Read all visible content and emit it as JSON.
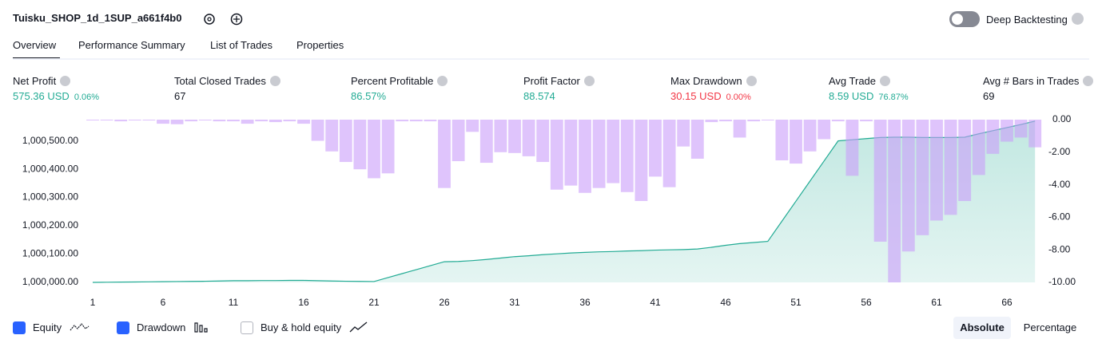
{
  "header": {
    "title": "Tuisku_SHOP_1d_1SUP_a661f4b0",
    "toggle_label": "Deep Backtesting"
  },
  "tabs": [
    "Overview",
    "Performance Summary",
    "List of Trades",
    "Properties"
  ],
  "stats": [
    {
      "label": "Net Profit",
      "value": "575.36 USD",
      "change": "0.06%"
    },
    {
      "label": "Total Closed Trades",
      "value": "67"
    },
    {
      "label": "Percent Profitable",
      "value": "86.57%"
    },
    {
      "label": "Profit Factor",
      "value": "88.574"
    },
    {
      "label": "Max Drawdown",
      "value": "30.15 USD",
      "change": "0.00%"
    },
    {
      "label": "Avg Trade",
      "value": "8.59 USD",
      "change": "76.87%"
    },
    {
      "label": "Avg # Bars in Trades",
      "value": "69"
    }
  ],
  "chart_data": {
    "type": "line",
    "x": [
      1,
      2,
      3,
      4,
      5,
      6,
      7,
      8,
      9,
      10,
      11,
      12,
      13,
      14,
      15,
      16,
      17,
      18,
      19,
      20,
      21,
      22,
      23,
      24,
      25,
      26,
      27,
      28,
      29,
      30,
      31,
      32,
      33,
      34,
      35,
      36,
      37,
      38,
      39,
      40,
      41,
      42,
      43,
      44,
      45,
      46,
      47,
      48,
      49,
      50,
      51,
      52,
      53,
      54,
      55,
      56,
      57,
      58,
      59,
      60,
      61,
      62,
      63,
      64,
      65,
      66,
      67,
      68
    ],
    "xlim": [
      0.5,
      68.5
    ],
    "xticks": [
      1,
      6,
      11,
      16,
      21,
      26,
      31,
      36,
      41,
      46,
      51,
      56,
      61,
      66
    ],
    "ylim": [
      1000000,
      1000575
    ],
    "yticks": [
      {
        "value": 1000000,
        "label": "1,000,000.00"
      },
      {
        "value": 1000100,
        "label": "1,000,100.00"
      },
      {
        "value": 1000200,
        "label": "1,000,200.00"
      },
      {
        "value": 1000300,
        "label": "1,000,300.00"
      },
      {
        "value": 1000400,
        "label": "1,000,400.00"
      },
      {
        "value": 1000500,
        "label": "1,000,500.00"
      }
    ],
    "y2lim": [
      -10,
      0
    ],
    "y2ticks": [
      {
        "value": 0,
        "label": "0.00"
      },
      {
        "value": -2,
        "label": "-2.00"
      },
      {
        "value": -4,
        "label": "-4.00"
      },
      {
        "value": -6,
        "label": "-6.00"
      },
      {
        "value": -8,
        "label": "-8.00"
      },
      {
        "value": -10,
        "label": "-10.00"
      }
    ],
    "series": [
      {
        "name": "Equity",
        "type": "area",
        "color": "#22ab94",
        "values": [
          1000000,
          1000000.5,
          1000001,
          1000001.5,
          1000002,
          1000002.5,
          1000003,
          1000003.5,
          1000004,
          1000005,
          1000006,
          1000006,
          1000006.5,
          1000006.5,
          1000007,
          1000007,
          1000006,
          1000005,
          1000004,
          1000003.5,
          1000003,
          1000017,
          1000031,
          1000045,
          1000059,
          1000073,
          1000074,
          1000077,
          1000081,
          1000086,
          1000091,
          1000094,
          1000098,
          1000101,
          1000104,
          1000106,
          1000108,
          1000109,
          1000111,
          1000112,
          1000114,
          1000115,
          1000116,
          1000118,
          1000124,
          1000131,
          1000137,
          1000141,
          1000145,
          1000216,
          1000287,
          1000358,
          1000429,
          1000500,
          1000504,
          1000508,
          1000512,
          1000513,
          1000513,
          1000512,
          1000512,
          1000512,
          1000513,
          1000525,
          1000536,
          1000547,
          1000558,
          1000570
        ]
      },
      {
        "name": "Drawdown",
        "type": "bar",
        "axis": "y2",
        "color": "#c99cfa",
        "values": [
          -0.05,
          -0.05,
          -0.1,
          -0.05,
          -0.05,
          -0.25,
          -0.28,
          -0.1,
          -0.05,
          -0.1,
          -0.1,
          -0.25,
          -0.1,
          -0.15,
          -0.1,
          -0.25,
          -1.3,
          -1.95,
          -2.6,
          -3.05,
          -3.6,
          -3.3,
          -0.1,
          -0.1,
          -0.1,
          -4.2,
          -2.55,
          -0.75,
          -2.65,
          -2.0,
          -2.05,
          -2.25,
          -2.6,
          -4.3,
          -4.05,
          -4.5,
          -4.2,
          -3.9,
          -4.45,
          -5.0,
          -3.5,
          -4.15,
          -1.65,
          -2.4,
          -0.15,
          -0.1,
          -1.1,
          -0.1,
          -0.05,
          -2.5,
          -2.7,
          -1.95,
          -1.2,
          -0.1,
          -3.45,
          -0.1,
          -7.5,
          -10,
          -8.1,
          -7.1,
          -6.2,
          -5.85,
          -5.0,
          -3.4,
          -2.1,
          -1.35,
          -1.1,
          -1.7
        ]
      }
    ]
  },
  "controls": {
    "extra_option": "Buy & hold equity",
    "modes": [
      "Absolute",
      "Percentage"
    ]
  }
}
